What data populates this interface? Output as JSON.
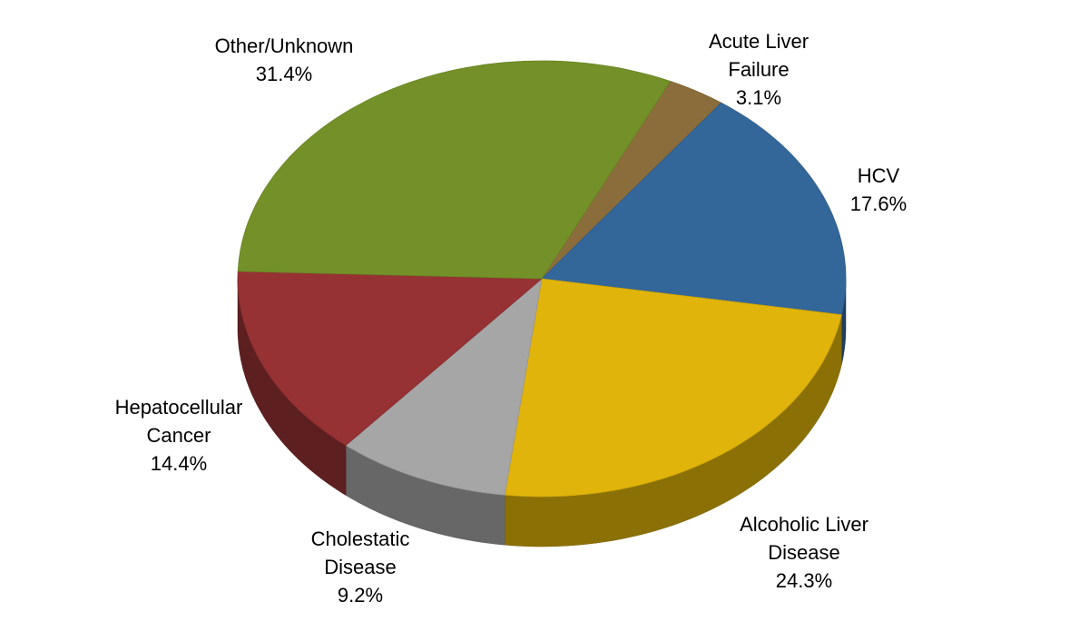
{
  "chart_data": {
    "type": "pie3d",
    "categories": [
      "Acute Liver Failure",
      "HCV",
      "Alcoholic Liver Disease",
      "Cholestatic Disease",
      "Hepatocellular Cancer",
      "Other/Unknown"
    ],
    "values": [
      3.1,
      17.6,
      24.3,
      9.2,
      14.4,
      31.4
    ],
    "value_labels": [
      "3.1%",
      "17.6%",
      "24.3%",
      "9.2%",
      "14.4%",
      "31.4%"
    ],
    "colors": [
      "#8b6d3b",
      "#336699",
      "#e0b40a",
      "#a6a6a6",
      "#963234",
      "#739128"
    ]
  }
}
